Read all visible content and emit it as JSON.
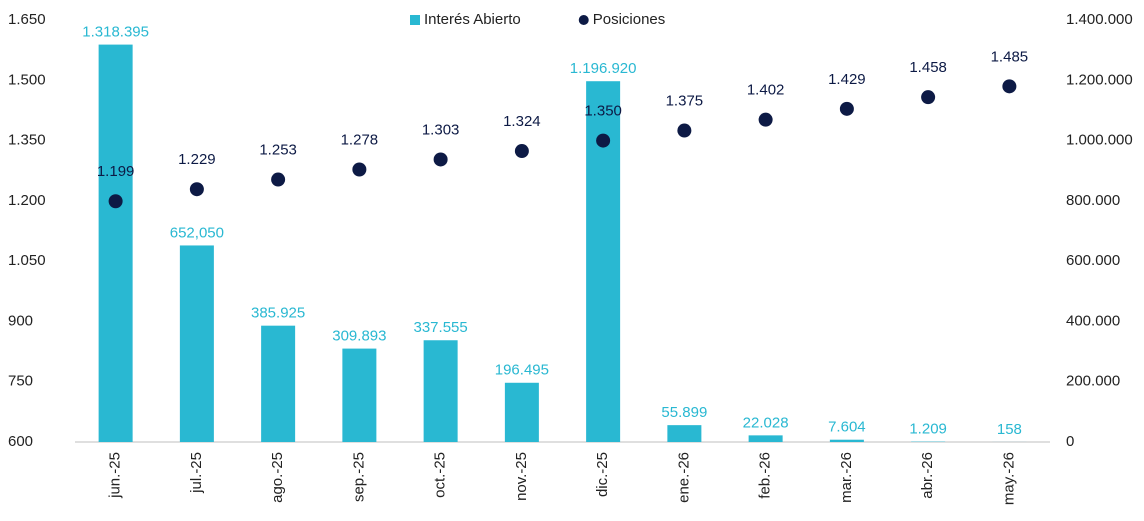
{
  "chart_data": {
    "type": "combo",
    "categories": [
      "jun.-25",
      "jul.-25",
      "ago.-25",
      "sep.-25",
      "oct.-25",
      "nov.-25",
      "dic.-25",
      "ene.-26",
      "feb.-26",
      "mar.-26",
      "abr.-26",
      "may.-26"
    ],
    "series": [
      {
        "name": "Interés Abierto",
        "type": "bar",
        "axis": "y2",
        "color": "#29b8d2",
        "values": [
          1318395,
          652050,
          385925,
          309893,
          337555,
          196495,
          1196920,
          55899,
          22028,
          7604,
          1209,
          158
        ],
        "value_labels": [
          "1.318.395",
          "652,050",
          "385.925",
          "309.893",
          "337.555",
          "196.495",
          "1.196.920",
          "55.899",
          "22.028",
          "7.604",
          "1.209",
          "158"
        ]
      },
      {
        "name": "Posiciones",
        "type": "scatter",
        "axis": "y",
        "color": "#0d1a45",
        "values": [
          1199,
          1229,
          1253,
          1278,
          1303,
          1324,
          1350,
          1375,
          1402,
          1429,
          1458,
          1485
        ],
        "value_labels": [
          "1.199",
          "1.229",
          "1.253",
          "1.278",
          "1.303",
          "1.324",
          "1.350",
          "1.375",
          "1.402",
          "1.429",
          "1.458",
          "1.485"
        ]
      }
    ],
    "ylim": [
      600,
      1650
    ],
    "yticks": [
      600,
      750,
      900,
      {
        "value": 1050,
        "label": "1.050"
      },
      {
        "value": 1200,
        "label": "1.200"
      },
      {
        "value": 1350,
        "label": "1.350"
      },
      {
        "value": 1500,
        "label": "1.500"
      },
      {
        "value": 1650,
        "label": "1.650"
      }
    ],
    "y2lim": [
      0,
      1400000
    ],
    "y2ticks": [
      0,
      {
        "value": 200000,
        "label": "200.000"
      },
      {
        "value": 400000,
        "label": "400.000"
      },
      {
        "value": 600000,
        "label": "600.000"
      },
      {
        "value": 800000,
        "label": "800.000"
      },
      {
        "value": 1000000,
        "label": "1.000.000"
      },
      {
        "value": 1200000,
        "label": "1.200.000"
      },
      {
        "value": 1400000,
        "label": "1.400.000"
      }
    ],
    "legend": "top"
  }
}
